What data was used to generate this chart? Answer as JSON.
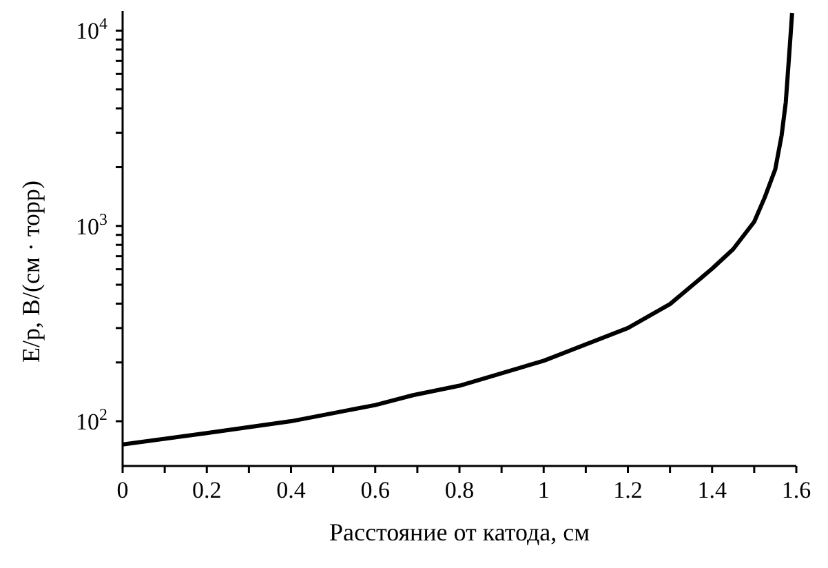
{
  "chart_data": {
    "type": "line",
    "xlabel": "Расстояние от катода, см",
    "ylabel": "E/p, В/(см · торр)",
    "log": "y",
    "grid": false,
    "legend": false,
    "marker": "none",
    "line_style": "solid",
    "x": [
      0,
      0.2,
      0.4,
      0.5,
      0.6,
      0.69,
      0.8,
      1.0,
      1.2,
      1.3,
      1.35,
      1.4,
      1.45,
      1.5,
      1.525,
      1.55,
      1.565,
      1.575,
      1.585,
      1.59
    ],
    "series": [
      {
        "color": "#000000",
        "values": [
          76,
          87,
          100,
          110,
          121,
          136,
          152,
          204,
          300,
          398,
          490,
          604,
          760,
          1050,
          1400,
          1950,
          2900,
          4300,
          8600,
          12300
        ]
      }
    ],
    "xlim": [
      0,
      1.6
    ],
    "ylim": [
      59,
      12600
    ],
    "xticks": [
      0,
      {
        "value": 0.1,
        "label": null
      },
      0.2,
      {
        "value": 0.3,
        "label": null
      },
      0.4,
      {
        "value": 0.5,
        "label": null
      },
      0.6,
      {
        "value": 0.7,
        "label": null
      },
      0.8,
      {
        "value": 0.9,
        "label": null
      },
      1,
      {
        "value": 1.1,
        "label": null
      },
      1.2,
      {
        "value": 1.3,
        "label": null
      },
      1.4,
      {
        "value": 1.5,
        "label": null
      },
      1.6
    ],
    "yticks": [
      {
        "value": 100,
        "label": "10$^{2}$"
      },
      {
        "value": 200,
        "label": null
      },
      {
        "value": 300,
        "label": null
      },
      {
        "value": 400,
        "label": null
      },
      {
        "value": 500,
        "label": null
      },
      {
        "value": 600,
        "label": null
      },
      {
        "value": 700,
        "label": null
      },
      {
        "value": 800,
        "label": null
      },
      {
        "value": 900,
        "label": null
      },
      {
        "value": 1000,
        "label": "10$^{3}$"
      },
      {
        "value": 2000,
        "label": null
      },
      {
        "value": 3000,
        "label": null
      },
      {
        "value": 4000,
        "label": null
      },
      {
        "value": 5000,
        "label": null
      },
      {
        "value": 6000,
        "label": null
      },
      {
        "value": 7000,
        "label": null
      },
      {
        "value": 8000,
        "label": null
      },
      {
        "value": 9000,
        "label": null
      },
      {
        "value": 10000,
        "label": "10$^{4}$"
      }
    ]
  }
}
